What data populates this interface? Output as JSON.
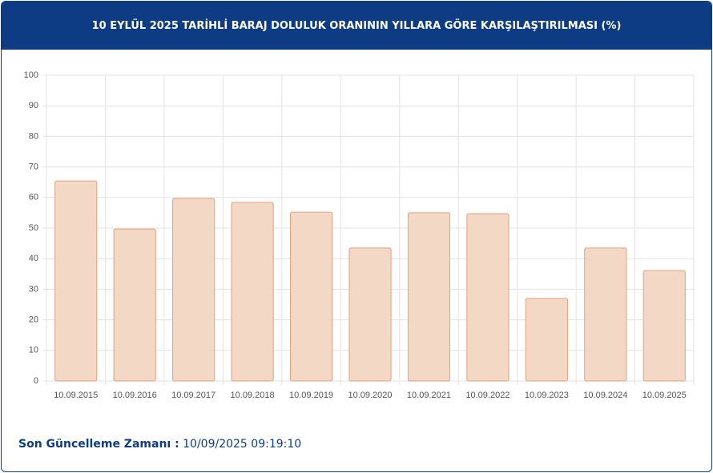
{
  "chart_data": {
    "type": "bar",
    "title": "10 EYLÜL 2025 TARİHLİ BARAJ DOLULUK ORANININ YILLARA GÖRE KARŞILAŞTIRILMASI (%)",
    "categories": [
      "10.09.2015",
      "10.09.2016",
      "10.09.2017",
      "10.09.2018",
      "10.09.2019",
      "10.09.2020",
      "10.09.2021",
      "10.09.2022",
      "10.09.2023",
      "10.09.2024",
      "10.09.2025"
    ],
    "values": [
      65.4,
      49.7,
      59.7,
      58.4,
      55.2,
      43.5,
      55.0,
      54.7,
      27.0,
      43.5,
      36.1
    ],
    "color": "#f3d8c5",
    "border_color": "#e6a07c",
    "ylim": [
      0,
      100
    ],
    "yticks": [
      0,
      10,
      20,
      30,
      40,
      50,
      60,
      70,
      80,
      90,
      100
    ],
    "grid": true
  },
  "footer": {
    "label": "Son Güncelleme Zamanı :",
    "value": "10/09/2025 09:19:10"
  }
}
